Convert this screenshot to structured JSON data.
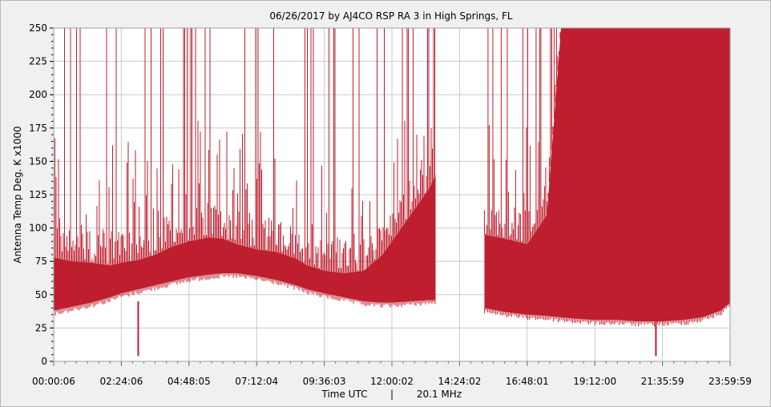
{
  "chart_data": {
    "type": "area",
    "title": "06/26/2017  by  AJ4CO RSP RA 3  in  High Springs, FL",
    "ylabel": "Antenna Temp Deg. K x1000",
    "xlabel": "Time UTC",
    "xlabel_separator": "|",
    "frequency": "20.1 MHz",
    "xlim": [
      "00:00:06",
      "23:59:59"
    ],
    "ylim": [
      0,
      250
    ],
    "y_ticks": [
      "0",
      "25",
      "50",
      "75",
      "100",
      "125",
      "150",
      "175",
      "200",
      "225",
      "250"
    ],
    "x_ticks": [
      "00:00:06",
      "02:24:06",
      "04:48:05",
      "07:12:04",
      "09:36:03",
      "12:00:02",
      "14:24:02",
      "16:48:01",
      "19:12:00",
      "21:35:59",
      "23:59:59"
    ],
    "grid": true,
    "series_color": "#be1e2d",
    "gap": [
      "13:34:00",
      "15:16:00"
    ],
    "series": [
      {
        "x": [
          "00:00:06",
          "00:40:00",
          "01:20:00",
          "02:00:00",
          "02:24:06",
          "03:00:00",
          "03:36:00",
          "04:12:00",
          "04:48:05",
          "05:30:00",
          "06:00:00",
          "06:30:00",
          "07:12:04",
          "07:54:00",
          "08:36:00",
          "09:00:00",
          "09:36:03",
          "10:18:00",
          "11:00:00",
          "11:40:00",
          "12:00:02",
          "12:40:00",
          "13:20:00",
          "13:33:00"
        ],
        "low": [
          38,
          41,
          44,
          48,
          51,
          54,
          57,
          60,
          63,
          65,
          66,
          66,
          64,
          61,
          57,
          54,
          51,
          48,
          45,
          44,
          44,
          45,
          46,
          46
        ],
        "high": [
          78,
          75,
          74,
          72,
          74,
          76,
          80,
          86,
          90,
          93,
          92,
          88,
          84,
          82,
          77,
          72,
          68,
          66,
          68,
          80,
          90,
          110,
          130,
          140
        ]
      },
      {
        "x": [
          "15:17:00",
          "16:00:00",
          "16:48:01",
          "17:30:00",
          "18:00:00",
          "18:30:00",
          "19:12:00",
          "20:00:00",
          "20:40:00",
          "21:35:59",
          "22:20:00",
          "23:00:00",
          "23:40:00",
          "23:59:59"
        ],
        "low": [
          40,
          37,
          35,
          34,
          33,
          32,
          31,
          31,
          30,
          30,
          31,
          33,
          38,
          44
        ],
        "high": [
          95,
          92,
          88,
          110,
          250,
          250,
          250,
          250,
          250,
          250,
          250,
          250,
          250,
          250
        ]
      }
    ],
    "dropouts": [
      [
        "03:00:00",
        4
      ],
      [
        "21:22:00",
        4
      ]
    ]
  }
}
